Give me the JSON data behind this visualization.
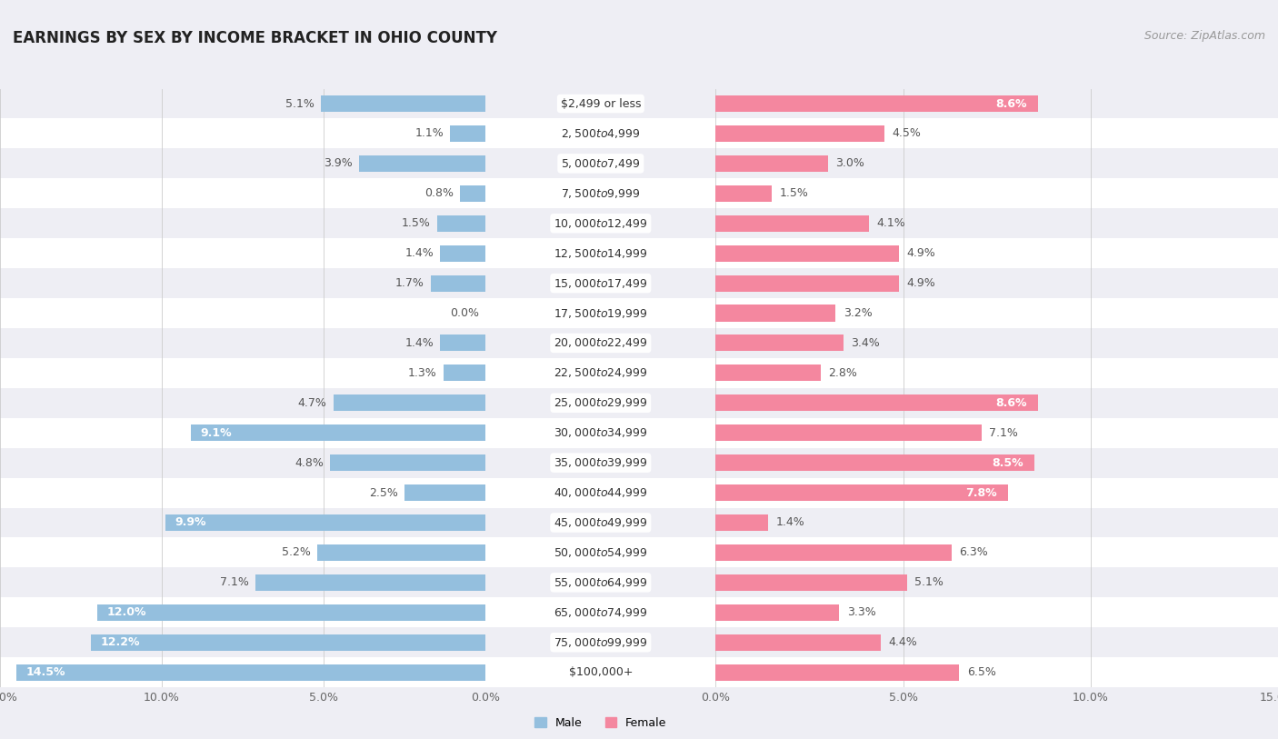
{
  "title": "EARNINGS BY SEX BY INCOME BRACKET IN OHIO COUNTY",
  "source": "Source: ZipAtlas.com",
  "categories": [
    "$2,499 or less",
    "$2,500 to $4,999",
    "$5,000 to $7,499",
    "$7,500 to $9,999",
    "$10,000 to $12,499",
    "$12,500 to $14,999",
    "$15,000 to $17,499",
    "$17,500 to $19,999",
    "$20,000 to $22,499",
    "$22,500 to $24,999",
    "$25,000 to $29,999",
    "$30,000 to $34,999",
    "$35,000 to $39,999",
    "$40,000 to $44,999",
    "$45,000 to $49,999",
    "$50,000 to $54,999",
    "$55,000 to $64,999",
    "$65,000 to $74,999",
    "$75,000 to $99,999",
    "$100,000+"
  ],
  "male_values": [
    5.1,
    1.1,
    3.9,
    0.8,
    1.5,
    1.4,
    1.7,
    0.0,
    1.4,
    1.3,
    4.7,
    9.1,
    4.8,
    2.5,
    9.9,
    5.2,
    7.1,
    12.0,
    12.2,
    14.5
  ],
  "female_values": [
    8.6,
    4.5,
    3.0,
    1.5,
    4.1,
    4.9,
    4.9,
    3.2,
    3.4,
    2.8,
    8.6,
    7.1,
    8.5,
    7.8,
    1.4,
    6.3,
    5.1,
    3.3,
    4.4,
    6.5
  ],
  "male_color": "#94bfde",
  "female_color": "#f4879f",
  "background_color": "#eeeef4",
  "row_color_even": "#ffffff",
  "row_color_odd": "#eeeef4",
  "xlim": 15.0,
  "title_fontsize": 12,
  "source_fontsize": 9,
  "label_fontsize": 9,
  "category_fontsize": 9,
  "tick_fontsize": 9,
  "inside_label_threshold": 7.5
}
